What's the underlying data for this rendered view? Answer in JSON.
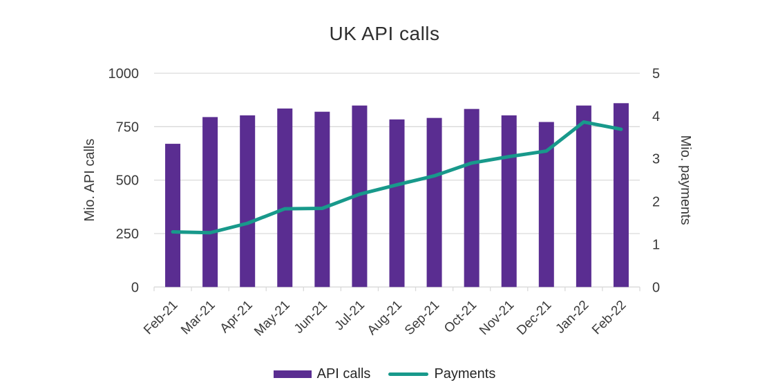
{
  "chart_data": {
    "type": "combo",
    "title": "UK API calls",
    "categories": [
      "Feb-21",
      "Mar-21",
      "Apr-21",
      "May-21",
      "Jun-21",
      "Jul-21",
      "Aug-21",
      "Sep-21",
      "Oct-21",
      "Nov-21",
      "Dec-21",
      "Jan-22",
      "Feb-22"
    ],
    "series": [
      {
        "name": "API calls",
        "type": "bar",
        "axis": "left",
        "color": "#5A2D91",
        "values": [
          670,
          795,
          803,
          835,
          820,
          849,
          784,
          791,
          833,
          803,
          772,
          849,
          860
        ]
      },
      {
        "name": "Payments",
        "type": "line",
        "axis": "right",
        "color": "#18998B",
        "values": [
          1.29,
          1.27,
          1.49,
          1.83,
          1.84,
          2.17,
          2.39,
          2.6,
          2.9,
          3.05,
          3.18,
          3.86,
          3.69
        ]
      }
    ],
    "left_axis": {
      "title": "Mio. API calls",
      "min": 0,
      "max": 1000,
      "ticks": [
        0,
        250,
        500,
        750,
        1000
      ],
      "tick_labels": [
        "0",
        "250",
        "500",
        "750",
        "1000"
      ]
    },
    "right_axis": {
      "title": "Mio. payments",
      "min": 0,
      "max": 5,
      "ticks": [
        0,
        1,
        2,
        3,
        4,
        5
      ],
      "tick_labels": [
        "0",
        "1",
        "2",
        "3",
        "4",
        "5"
      ]
    },
    "gridlines": "horizontal-at-left-ticks",
    "legend_position": "bottom",
    "colors": {
      "grid": "#D9D9D9",
      "axis_text": "#3A3A3A",
      "title_text": "#2E2E2E"
    }
  }
}
